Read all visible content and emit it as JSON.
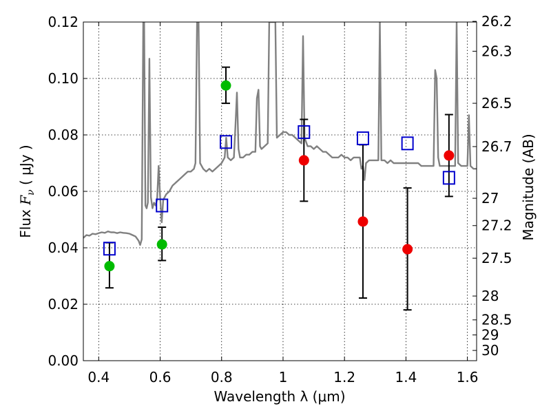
{
  "chart_data": {
    "type": "scatter",
    "xlabel": "Wavelength  λ (μm)",
    "ylabel_left": {
      "main": "Flux  ",
      "symbol_main": "F",
      "symbol_sub": "ν",
      "unit": " ( μJy )"
    },
    "ylabel_right": "Magnitude (AB)",
    "xlim": [
      0.35,
      1.63
    ],
    "ylim": [
      0.0,
      0.12
    ],
    "grid": true,
    "x_ticks": [
      {
        "value": 0.4,
        "label": "0.4"
      },
      {
        "value": 0.6,
        "label": "0.6"
      },
      {
        "value": 0.8,
        "label": "0.8"
      },
      {
        "value": 1.0,
        "label": "1"
      },
      {
        "value": 1.2,
        "label": "1.2"
      },
      {
        "value": 1.4,
        "label": "1.4"
      },
      {
        "value": 1.6,
        "label": "1.6"
      }
    ],
    "y_ticks": [
      {
        "value": 0.0,
        "label": "0.00"
      },
      {
        "value": 0.02,
        "label": "0.02"
      },
      {
        "value": 0.04,
        "label": "0.04"
      },
      {
        "value": 0.06,
        "label": "0.06"
      },
      {
        "value": 0.08,
        "label": "0.08"
      },
      {
        "value": 0.1,
        "label": "0.10"
      },
      {
        "value": 0.12,
        "label": "0.12"
      }
    ],
    "magnitude_ticks": [
      {
        "mag": 26.2,
        "label": "26.2"
      },
      {
        "mag": 26.3,
        "label": "26.3"
      },
      {
        "mag": 26.5,
        "label": "26.5"
      },
      {
        "mag": 26.7,
        "label": "26.7"
      },
      {
        "mag": 27.0,
        "label": "27"
      },
      {
        "mag": 27.2,
        "label": "27.2"
      },
      {
        "mag": 27.5,
        "label": "27.5"
      },
      {
        "mag": 28.0,
        "label": "28"
      },
      {
        "mag": 28.5,
        "label": "28.5"
      },
      {
        "mag": 29.0,
        "label": "29"
      },
      {
        "mag": 30.0,
        "label": "30"
      }
    ],
    "model_spectrum": {
      "color": "#808080",
      "points": [
        [
          0.35,
          0.0435
        ],
        [
          0.36,
          0.0445
        ],
        [
          0.37,
          0.0443
        ],
        [
          0.38,
          0.045
        ],
        [
          0.39,
          0.0448
        ],
        [
          0.4,
          0.0452
        ],
        [
          0.41,
          0.0455
        ],
        [
          0.42,
          0.0453
        ],
        [
          0.43,
          0.0458
        ],
        [
          0.44,
          0.0455
        ],
        [
          0.45,
          0.0455
        ],
        [
          0.46,
          0.0452
        ],
        [
          0.47,
          0.0455
        ],
        [
          0.48,
          0.0453
        ],
        [
          0.49,
          0.0452
        ],
        [
          0.5,
          0.045
        ],
        [
          0.51,
          0.0445
        ],
        [
          0.52,
          0.044
        ],
        [
          0.53,
          0.0425
        ],
        [
          0.535,
          0.041
        ],
        [
          0.54,
          0.043
        ],
        [
          0.545,
          0.12
        ],
        [
          0.548,
          0.12
        ],
        [
          0.552,
          0.055
        ],
        [
          0.556,
          0.054
        ],
        [
          0.56,
          0.056
        ],
        [
          0.565,
          0.107
        ],
        [
          0.57,
          0.058
        ],
        [
          0.575,
          0.054
        ],
        [
          0.58,
          0.056
        ],
        [
          0.585,
          0.055
        ],
        [
          0.59,
          0.057
        ],
        [
          0.595,
          0.069
        ],
        [
          0.6,
          0.058
        ],
        [
          0.605,
          0.049
        ],
        [
          0.61,
          0.057
        ],
        [
          0.62,
          0.059
        ],
        [
          0.63,
          0.06
        ],
        [
          0.64,
          0.062
        ],
        [
          0.65,
          0.063
        ],
        [
          0.66,
          0.064
        ],
        [
          0.67,
          0.065
        ],
        [
          0.68,
          0.066
        ],
        [
          0.69,
          0.067
        ],
        [
          0.7,
          0.067
        ],
        [
          0.71,
          0.068
        ],
        [
          0.715,
          0.07
        ],
        [
          0.72,
          0.12
        ],
        [
          0.725,
          0.12
        ],
        [
          0.73,
          0.07
        ],
        [
          0.74,
          0.068
        ],
        [
          0.75,
          0.067
        ],
        [
          0.76,
          0.068
        ],
        [
          0.77,
          0.067
        ],
        [
          0.78,
          0.068
        ],
        [
          0.79,
          0.069
        ],
        [
          0.8,
          0.07
        ],
        [
          0.81,
          0.072
        ],
        [
          0.815,
          0.079
        ],
        [
          0.82,
          0.072
        ],
        [
          0.83,
          0.071
        ],
        [
          0.84,
          0.072
        ],
        [
          0.845,
          0.083
        ],
        [
          0.85,
          0.095
        ],
        [
          0.855,
          0.075
        ],
        [
          0.86,
          0.072
        ],
        [
          0.87,
          0.072
        ],
        [
          0.88,
          0.073
        ],
        [
          0.89,
          0.073
        ],
        [
          0.9,
          0.074
        ],
        [
          0.91,
          0.074
        ],
        [
          0.915,
          0.093
        ],
        [
          0.92,
          0.096
        ],
        [
          0.925,
          0.076
        ],
        [
          0.93,
          0.075
        ],
        [
          0.94,
          0.076
        ],
        [
          0.95,
          0.077
        ],
        [
          0.955,
          0.12
        ],
        [
          0.965,
          0.12
        ],
        [
          0.97,
          0.12
        ],
        [
          0.975,
          0.12
        ],
        [
          0.98,
          0.079
        ],
        [
          0.99,
          0.08
        ],
        [
          1.0,
          0.081
        ],
        [
          1.01,
          0.081
        ],
        [
          1.02,
          0.08
        ],
        [
          1.03,
          0.08
        ],
        [
          1.04,
          0.079
        ],
        [
          1.05,
          0.078
        ],
        [
          1.06,
          0.077
        ],
        [
          1.065,
          0.115
        ],
        [
          1.07,
          0.079
        ],
        [
          1.08,
          0.076
        ],
        [
          1.09,
          0.076
        ],
        [
          1.1,
          0.075
        ],
        [
          1.11,
          0.076
        ],
        [
          1.12,
          0.075
        ],
        [
          1.13,
          0.074
        ],
        [
          1.14,
          0.074
        ],
        [
          1.15,
          0.073
        ],
        [
          1.16,
          0.072
        ],
        [
          1.17,
          0.072
        ],
        [
          1.18,
          0.072
        ],
        [
          1.19,
          0.073
        ],
        [
          1.2,
          0.072
        ],
        [
          1.21,
          0.072
        ],
        [
          1.22,
          0.071
        ],
        [
          1.23,
          0.072
        ],
        [
          1.24,
          0.072
        ],
        [
          1.25,
          0.072
        ],
        [
          1.255,
          0.068
        ],
        [
          1.26,
          0.069
        ],
        [
          1.265,
          0.064
        ],
        [
          1.27,
          0.07
        ],
        [
          1.28,
          0.071
        ],
        [
          1.29,
          0.071
        ],
        [
          1.3,
          0.071
        ],
        [
          1.31,
          0.071
        ],
        [
          1.315,
          0.12
        ],
        [
          1.32,
          0.071
        ],
        [
          1.33,
          0.071
        ],
        [
          1.34,
          0.07
        ],
        [
          1.35,
          0.071
        ],
        [
          1.36,
          0.07
        ],
        [
          1.37,
          0.07
        ],
        [
          1.38,
          0.07
        ],
        [
          1.39,
          0.07
        ],
        [
          1.4,
          0.07
        ],
        [
          1.41,
          0.07
        ],
        [
          1.42,
          0.07
        ],
        [
          1.43,
          0.07
        ],
        [
          1.44,
          0.07
        ],
        [
          1.45,
          0.069
        ],
        [
          1.46,
          0.069
        ],
        [
          1.47,
          0.069
        ],
        [
          1.48,
          0.069
        ],
        [
          1.49,
          0.069
        ],
        [
          1.495,
          0.103
        ],
        [
          1.5,
          0.1
        ],
        [
          1.505,
          0.072
        ],
        [
          1.51,
          0.069
        ],
        [
          1.52,
          0.069
        ],
        [
          1.53,
          0.069
        ],
        [
          1.54,
          0.069
        ],
        [
          1.55,
          0.069
        ],
        [
          1.56,
          0.069
        ],
        [
          1.565,
          0.12
        ],
        [
          1.57,
          0.07
        ],
        [
          1.58,
          0.069
        ],
        [
          1.59,
          0.069
        ],
        [
          1.6,
          0.069
        ],
        [
          1.605,
          0.087
        ],
        [
          1.61,
          0.069
        ],
        [
          1.62,
          0.068
        ],
        [
          1.63,
          0.068
        ]
      ]
    },
    "series": [
      {
        "marker": "open-square",
        "color": "#0000cc",
        "points": [
          {
            "x": 0.435,
            "y": 0.0397
          },
          {
            "x": 0.606,
            "y": 0.055
          },
          {
            "x": 0.814,
            "y": 0.0775
          },
          {
            "x": 1.068,
            "y": 0.081
          },
          {
            "x": 1.26,
            "y": 0.0788
          },
          {
            "x": 1.405,
            "y": 0.077
          },
          {
            "x": 1.54,
            "y": 0.0648
          }
        ]
      },
      {
        "marker": "filled-circle",
        "color": "#00bb00",
        "points": [
          {
            "x": 0.435,
            "y": 0.0335,
            "err_low": 0.0258,
            "err_high": 0.0418
          },
          {
            "x": 0.606,
            "y": 0.0412,
            "err_low": 0.0355,
            "err_high": 0.0473
          },
          {
            "x": 0.814,
            "y": 0.0975,
            "err_low": 0.0912,
            "err_high": 0.104
          }
        ]
      },
      {
        "marker": "filled-circle",
        "color": "#ee0000",
        "points": [
          {
            "x": 1.068,
            "y": 0.071,
            "err_low": 0.0565,
            "err_high": 0.0855
          },
          {
            "x": 1.26,
            "y": 0.0493,
            "err_low": 0.0222,
            "err_high": 0.0765
          },
          {
            "x": 1.405,
            "y": 0.0395,
            "err_low": 0.018,
            "err_high": 0.0612
          },
          {
            "x": 1.54,
            "y": 0.0727,
            "err_low": 0.0582,
            "err_high": 0.0872
          }
        ]
      }
    ]
  }
}
